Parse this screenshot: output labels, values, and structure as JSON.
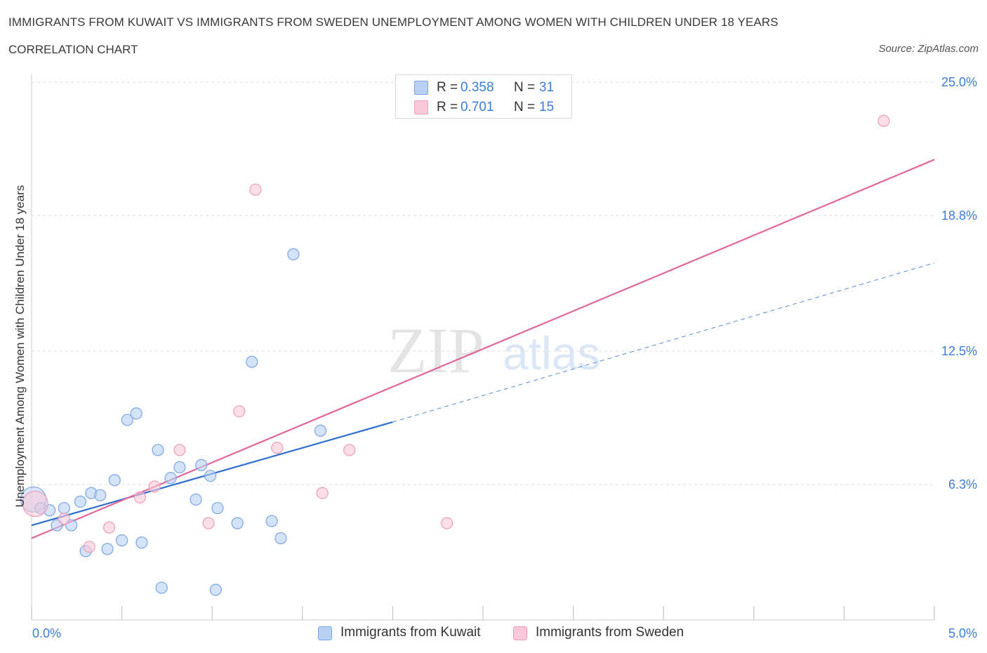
{
  "header": {
    "title": "IMMIGRANTS FROM KUWAIT VS IMMIGRANTS FROM SWEDEN UNEMPLOYMENT AMONG WOMEN WITH CHILDREN UNDER 18 YEARS",
    "subtitle": "CORRELATION CHART",
    "source": "Source: ZipAtlas.com"
  },
  "watermark": {
    "zip": "ZIP",
    "atlas": "atlas"
  },
  "stats_legend": [
    {
      "r_label": "R =",
      "r_value": "0.358",
      "n_label": "N =",
      "n_value": "31"
    },
    {
      "r_label": "R =",
      "r_value": "0.701",
      "n_label": "N =",
      "n_value": "15"
    }
  ],
  "bottom_legend": [
    {
      "label": "Immigrants from Kuwait"
    },
    {
      "label": "Immigrants from Sweden"
    }
  ],
  "colors": {
    "kuwait_fill": "#b9d1f3",
    "kuwait_stroke": "#7aa6e3",
    "kuwait_line": "#2f6fd0",
    "sweden_fill": "#f8c9d8",
    "sweden_stroke": "#ee9db8",
    "sweden_line": "#e0679a",
    "tick_label": "#3b7dd8",
    "grid": "#dddddd"
  },
  "chart_data": {
    "type": "scatter",
    "title": "IMMIGRANTS FROM KUWAIT VS IMMIGRANTS FROM SWEDEN UNEMPLOYMENT AMONG WOMEN WITH CHILDREN UNDER 18 YEARS",
    "ylabel": "Unemployment Among Women with Children Under 18 years",
    "xlabel": "",
    "xlim": [
      0,
      5
    ],
    "ylim": [
      0,
      25
    ],
    "x_tick_labels": [
      {
        "value": 0,
        "label": "0.0%"
      },
      {
        "value": 5,
        "label": "5.0%"
      }
    ],
    "y_tick_labels": [
      {
        "value": 6.3,
        "label": "6.3%"
      },
      {
        "value": 12.5,
        "label": "12.5%"
      },
      {
        "value": 18.8,
        "label": "18.8%"
      },
      {
        "value": 25.0,
        "label": "25.0%"
      }
    ],
    "grid": true,
    "legend_position": "top-center",
    "series": [
      {
        "name": "Immigrants from Kuwait",
        "r": 0.358,
        "n": 31,
        "points": [
          [
            0.01,
            5.6
          ],
          [
            0.05,
            5.2
          ],
          [
            0.1,
            5.1
          ],
          [
            0.14,
            4.4
          ],
          [
            0.18,
            5.2
          ],
          [
            0.22,
            4.4
          ],
          [
            0.27,
            5.5
          ],
          [
            0.3,
            3.2
          ],
          [
            0.33,
            5.9
          ],
          [
            0.38,
            5.8
          ],
          [
            0.42,
            3.3
          ],
          [
            0.46,
            6.5
          ],
          [
            0.5,
            3.7
          ],
          [
            0.53,
            9.3
          ],
          [
            0.58,
            9.6
          ],
          [
            0.61,
            3.6
          ],
          [
            0.7,
            7.9
          ],
          [
            0.72,
            1.5
          ],
          [
            0.77,
            6.6
          ],
          [
            0.82,
            7.1
          ],
          [
            0.91,
            5.6
          ],
          [
            0.94,
            7.2
          ],
          [
            0.99,
            6.7
          ],
          [
            1.03,
            5.2
          ],
          [
            1.02,
            1.4
          ],
          [
            1.14,
            4.5
          ],
          [
            1.22,
            12.0
          ],
          [
            1.33,
            4.6
          ],
          [
            1.45,
            17.0
          ],
          [
            1.38,
            3.8
          ],
          [
            1.6,
            8.8
          ]
        ],
        "trend": {
          "x": [
            0.0,
            2.0
          ],
          "y": [
            4.4,
            9.2
          ]
        },
        "trend_extension": {
          "x": [
            2.0,
            5.0
          ],
          "y": [
            9.2,
            16.6
          ]
        }
      },
      {
        "name": "Immigrants from Sweden",
        "r": 0.701,
        "n": 15,
        "points": [
          [
            0.02,
            5.4
          ],
          [
            0.18,
            4.7
          ],
          [
            0.32,
            3.4
          ],
          [
            0.43,
            4.3
          ],
          [
            0.6,
            5.7
          ],
          [
            0.68,
            6.2
          ],
          [
            0.82,
            7.9
          ],
          [
            0.98,
            4.5
          ],
          [
            1.15,
            9.7
          ],
          [
            1.24,
            20.0
          ],
          [
            1.36,
            8.0
          ],
          [
            1.61,
            5.9
          ],
          [
            1.76,
            7.9
          ],
          [
            2.3,
            4.5
          ],
          [
            4.72,
            23.2
          ]
        ],
        "trend": {
          "x": [
            0.0,
            5.0
          ],
          "y": [
            3.8,
            21.4
          ]
        }
      }
    ]
  }
}
